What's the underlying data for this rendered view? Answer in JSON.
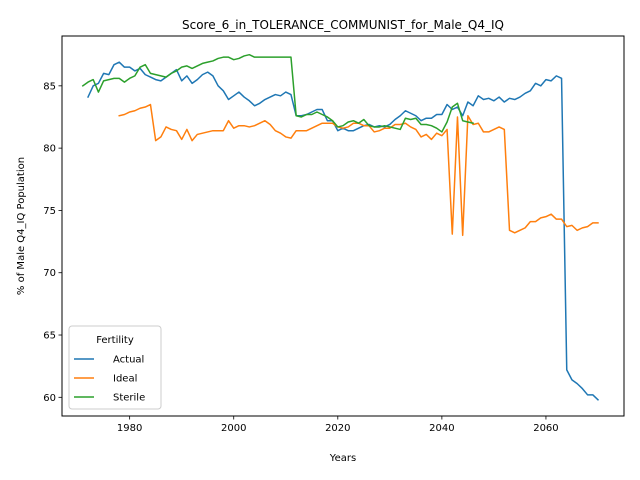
{
  "chart_data": {
    "type": "line",
    "title": "Score_6_in_TOLERANCE_COMMUNIST_for_Male_Q4_IQ",
    "xlabel": "Years",
    "ylabel": "% of Male Q4_IQ Population",
    "xlim": [
      1967,
      2075
    ],
    "ylim": [
      58.5,
      89.0
    ],
    "xticks": [
      1980,
      2000,
      2020,
      2040,
      2060
    ],
    "yticks": [
      60,
      65,
      70,
      75,
      80,
      85
    ],
    "grid": false,
    "legend": {
      "title": "Fertility",
      "position": "bottom-left"
    },
    "series": [
      {
        "name": "Actual",
        "color": "#1f77b4",
        "points": [
          [
            1972,
            84.1
          ],
          [
            1973,
            85.0
          ],
          [
            1974,
            85.2
          ],
          [
            1975,
            86.0
          ],
          [
            1976,
            85.9
          ],
          [
            1977,
            86.7
          ],
          [
            1978,
            86.9
          ],
          [
            1979,
            86.5
          ],
          [
            1980,
            86.5
          ],
          [
            1981,
            86.2
          ],
          [
            1982,
            86.4
          ],
          [
            1983,
            85.9
          ],
          [
            1984,
            85.7
          ],
          [
            1985,
            85.5
          ],
          [
            1986,
            85.4
          ],
          [
            1987,
            85.7
          ],
          [
            1988,
            86.0
          ],
          [
            1989,
            86.3
          ],
          [
            1990,
            85.4
          ],
          [
            1991,
            85.8
          ],
          [
            1992,
            85.2
          ],
          [
            1993,
            85.5
          ],
          [
            1994,
            85.9
          ],
          [
            1995,
            86.1
          ],
          [
            1996,
            85.8
          ],
          [
            1997,
            85.0
          ],
          [
            1998,
            84.6
          ],
          [
            1999,
            83.9
          ],
          [
            2000,
            84.2
          ],
          [
            2001,
            84.5
          ],
          [
            2002,
            84.1
          ],
          [
            2003,
            83.8
          ],
          [
            2004,
            83.4
          ],
          [
            2005,
            83.6
          ],
          [
            2006,
            83.9
          ],
          [
            2007,
            84.1
          ],
          [
            2008,
            84.3
          ],
          [
            2009,
            84.2
          ],
          [
            2010,
            84.5
          ],
          [
            2011,
            84.3
          ],
          [
            2012,
            82.6
          ],
          [
            2013,
            82.6
          ],
          [
            2014,
            82.7
          ],
          [
            2015,
            82.9
          ],
          [
            2016,
            83.1
          ],
          [
            2017,
            83.1
          ],
          [
            2018,
            82.2
          ],
          [
            2019,
            82.2
          ],
          [
            2020,
            81.4
          ],
          [
            2021,
            81.6
          ],
          [
            2022,
            81.4
          ],
          [
            2023,
            81.4
          ],
          [
            2024,
            81.6
          ],
          [
            2025,
            81.8
          ],
          [
            2026,
            81.9
          ],
          [
            2027,
            81.7
          ],
          [
            2028,
            81.8
          ],
          [
            2029,
            81.7
          ],
          [
            2030,
            81.9
          ],
          [
            2031,
            82.3
          ],
          [
            2032,
            82.6
          ],
          [
            2033,
            83.0
          ],
          [
            2034,
            82.8
          ],
          [
            2035,
            82.6
          ],
          [
            2036,
            82.2
          ],
          [
            2037,
            82.4
          ],
          [
            2038,
            82.4
          ],
          [
            2039,
            82.7
          ],
          [
            2040,
            82.7
          ],
          [
            2041,
            83.5
          ],
          [
            2042,
            83.1
          ],
          [
            2043,
            83.3
          ],
          [
            2044,
            82.6
          ],
          [
            2045,
            83.7
          ],
          [
            2046,
            83.4
          ],
          [
            2047,
            84.2
          ],
          [
            2048,
            83.9
          ],
          [
            2049,
            84.0
          ],
          [
            2050,
            83.8
          ],
          [
            2051,
            84.1
          ],
          [
            2052,
            83.7
          ],
          [
            2053,
            84.0
          ],
          [
            2054,
            83.9
          ],
          [
            2055,
            84.1
          ],
          [
            2056,
            84.4
          ],
          [
            2057,
            84.6
          ],
          [
            2058,
            85.2
          ],
          [
            2059,
            85.0
          ],
          [
            2060,
            85.5
          ],
          [
            2061,
            85.4
          ],
          [
            2062,
            85.8
          ],
          [
            2063,
            85.6
          ],
          [
            2064,
            62.2
          ],
          [
            2065,
            61.4
          ],
          [
            2066,
            61.1
          ],
          [
            2067,
            60.7
          ],
          [
            2068,
            60.2
          ],
          [
            2069,
            60.2
          ],
          [
            2070,
            59.8
          ]
        ]
      },
      {
        "name": "Ideal",
        "color": "#ff7f0e",
        "points": [
          [
            1978,
            82.6
          ],
          [
            1979,
            82.7
          ],
          [
            1980,
            82.9
          ],
          [
            1981,
            83.0
          ],
          [
            1982,
            83.2
          ],
          [
            1983,
            83.3
          ],
          [
            1984,
            83.5
          ],
          [
            1985,
            80.6
          ],
          [
            1986,
            80.9
          ],
          [
            1987,
            81.7
          ],
          [
            1988,
            81.5
          ],
          [
            1989,
            81.4
          ],
          [
            1990,
            80.7
          ],
          [
            1991,
            81.5
          ],
          [
            1992,
            80.6
          ],
          [
            1993,
            81.1
          ],
          [
            1994,
            81.2
          ],
          [
            1995,
            81.3
          ],
          [
            1996,
            81.4
          ],
          [
            1997,
            81.4
          ],
          [
            1998,
            81.4
          ],
          [
            1999,
            82.2
          ],
          [
            2000,
            81.6
          ],
          [
            2001,
            81.8
          ],
          [
            2002,
            81.8
          ],
          [
            2003,
            81.7
          ],
          [
            2004,
            81.8
          ],
          [
            2005,
            82.0
          ],
          [
            2006,
            82.2
          ],
          [
            2007,
            81.9
          ],
          [
            2008,
            81.4
          ],
          [
            2009,
            81.2
          ],
          [
            2010,
            80.9
          ],
          [
            2011,
            80.8
          ],
          [
            2012,
            81.4
          ],
          [
            2013,
            81.4
          ],
          [
            2014,
            81.4
          ],
          [
            2015,
            81.6
          ],
          [
            2016,
            81.8
          ],
          [
            2017,
            82.0
          ],
          [
            2018,
            82.0
          ],
          [
            2019,
            82.0
          ],
          [
            2020,
            81.7
          ],
          [
            2021,
            81.6
          ],
          [
            2022,
            81.7
          ],
          [
            2023,
            82.0
          ],
          [
            2024,
            82.0
          ],
          [
            2025,
            81.8
          ],
          [
            2026,
            81.8
          ],
          [
            2027,
            81.3
          ],
          [
            2028,
            81.4
          ],
          [
            2029,
            81.6
          ],
          [
            2030,
            81.6
          ],
          [
            2031,
            81.9
          ],
          [
            2032,
            81.9
          ],
          [
            2033,
            82.0
          ],
          [
            2034,
            81.7
          ],
          [
            2035,
            81.5
          ],
          [
            2036,
            80.9
          ],
          [
            2037,
            81.1
          ],
          [
            2038,
            80.7
          ],
          [
            2039,
            81.2
          ],
          [
            2040,
            81.0
          ],
          [
            2041,
            81.5
          ],
          [
            2042,
            73.1
          ],
          [
            2043,
            82.5
          ],
          [
            2044,
            73.0
          ],
          [
            2045,
            82.6
          ],
          [
            2046,
            81.9
          ],
          [
            2047,
            82.0
          ],
          [
            2048,
            81.3
          ],
          [
            2049,
            81.3
          ],
          [
            2050,
            81.5
          ],
          [
            2051,
            81.7
          ],
          [
            2052,
            81.5
          ],
          [
            2053,
            73.4
          ],
          [
            2054,
            73.2
          ],
          [
            2055,
            73.4
          ],
          [
            2056,
            73.6
          ],
          [
            2057,
            74.1
          ],
          [
            2058,
            74.1
          ],
          [
            2059,
            74.4
          ],
          [
            2060,
            74.5
          ],
          [
            2061,
            74.7
          ],
          [
            2062,
            74.3
          ],
          [
            2063,
            74.3
          ],
          [
            2064,
            73.7
          ],
          [
            2065,
            73.8
          ],
          [
            2066,
            73.4
          ],
          [
            2067,
            73.6
          ],
          [
            2068,
            73.7
          ],
          [
            2069,
            74.0
          ],
          [
            2070,
            74.0
          ]
        ]
      },
      {
        "name": "Sterile",
        "color": "#2ca02c",
        "points": [
          [
            1971,
            85.0
          ],
          [
            1972,
            85.3
          ],
          [
            1973,
            85.5
          ],
          [
            1974,
            84.5
          ],
          [
            1975,
            85.4
          ],
          [
            1976,
            85.5
          ],
          [
            1977,
            85.6
          ],
          [
            1978,
            85.6
          ],
          [
            1979,
            85.3
          ],
          [
            1980,
            85.6
          ],
          [
            1981,
            85.8
          ],
          [
            1982,
            86.5
          ],
          [
            1983,
            86.7
          ],
          [
            1984,
            86.0
          ],
          [
            1985,
            85.9
          ],
          [
            1986,
            85.8
          ],
          [
            1987,
            85.7
          ],
          [
            1988,
            86.0
          ],
          [
            1989,
            86.2
          ],
          [
            1990,
            86.5
          ],
          [
            1991,
            86.6
          ],
          [
            1992,
            86.4
          ],
          [
            1993,
            86.6
          ],
          [
            1994,
            86.8
          ],
          [
            1995,
            86.9
          ],
          [
            1996,
            87.0
          ],
          [
            1997,
            87.2
          ],
          [
            1998,
            87.3
          ],
          [
            1999,
            87.3
          ],
          [
            2000,
            87.1
          ],
          [
            2001,
            87.2
          ],
          [
            2002,
            87.4
          ],
          [
            2003,
            87.5
          ],
          [
            2004,
            87.3
          ],
          [
            2005,
            87.3
          ],
          [
            2006,
            87.3
          ],
          [
            2007,
            87.3
          ],
          [
            2008,
            87.3
          ],
          [
            2009,
            87.3
          ],
          [
            2010,
            87.3
          ],
          [
            2011,
            87.3
          ],
          [
            2012,
            82.6
          ],
          [
            2013,
            82.5
          ],
          [
            2014,
            82.7
          ],
          [
            2015,
            82.7
          ],
          [
            2016,
            82.9
          ],
          [
            2017,
            82.7
          ],
          [
            2018,
            82.5
          ],
          [
            2019,
            82.2
          ],
          [
            2020,
            81.7
          ],
          [
            2021,
            81.8
          ],
          [
            2022,
            82.1
          ],
          [
            2023,
            82.2
          ],
          [
            2024,
            82.0
          ],
          [
            2025,
            82.3
          ],
          [
            2026,
            81.8
          ],
          [
            2027,
            81.7
          ],
          [
            2028,
            81.7
          ],
          [
            2029,
            81.8
          ],
          [
            2030,
            81.7
          ],
          [
            2031,
            81.6
          ],
          [
            2032,
            81.5
          ],
          [
            2033,
            82.4
          ],
          [
            2034,
            82.3
          ],
          [
            2035,
            82.4
          ],
          [
            2036,
            81.9
          ],
          [
            2037,
            81.9
          ],
          [
            2038,
            81.8
          ],
          [
            2039,
            81.6
          ],
          [
            2040,
            81.3
          ],
          [
            2041,
            82.1
          ],
          [
            2042,
            83.3
          ],
          [
            2043,
            83.6
          ],
          [
            2044,
            82.2
          ],
          [
            2045,
            82.1
          ],
          [
            2046,
            82.0
          ]
        ]
      }
    ]
  }
}
